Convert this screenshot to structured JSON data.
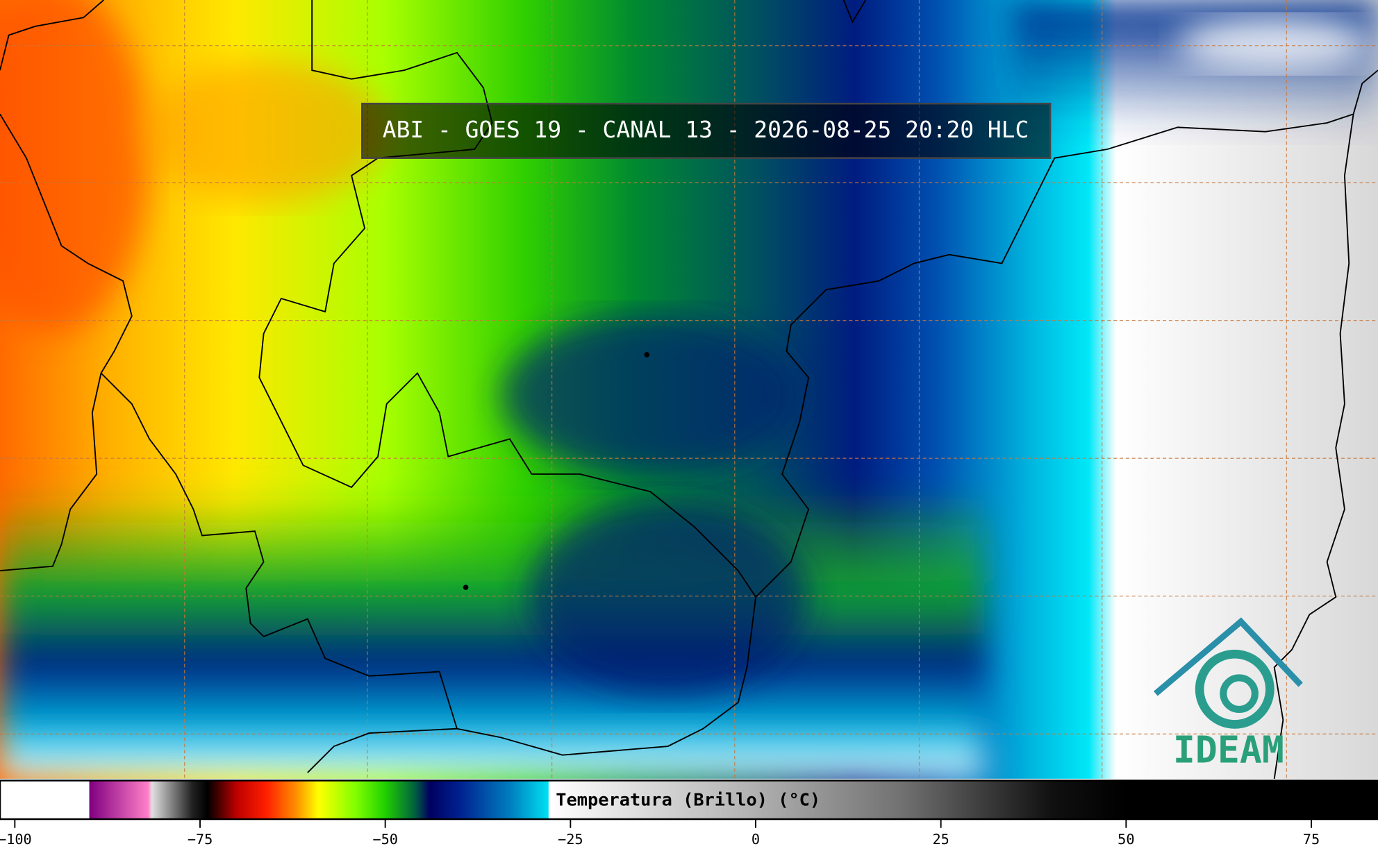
{
  "title": "ABI - GOES 19 - CANAL 13 - 2026-08-25 20:20 HLC",
  "logo": {
    "text": "IDEAM"
  },
  "colorbar": {
    "label": "Temperatura (Brillo) (°C)",
    "lim": [
      -102,
      84
    ],
    "ticks": [
      {
        "value": -100,
        "label": "−100"
      },
      {
        "value": -75,
        "label": "−75"
      },
      {
        "value": -50,
        "label": "−50"
      },
      {
        "value": -25,
        "label": "−25"
      },
      0,
      25,
      50,
      75
    ],
    "stops": [
      {
        "value": -102,
        "color": "#ffffff"
      },
      {
        "value": -90,
        "color": "#ffffff"
      },
      {
        "value": -89.9,
        "color": "#800080"
      },
      {
        "value": -82,
        "color": "#ff80c8"
      },
      {
        "value": -81.5,
        "color": "#e0e0e0"
      },
      {
        "value": -76,
        "color": "#202020"
      },
      {
        "value": -74,
        "color": "#000000"
      },
      {
        "value": -70,
        "color": "#c00000"
      },
      {
        "value": -66,
        "color": "#ff2000"
      },
      {
        "value": -62,
        "color": "#ff9000"
      },
      {
        "value": -59,
        "color": "#ffff00"
      },
      {
        "value": -54,
        "color": "#80ff00"
      },
      {
        "value": -50,
        "color": "#20d000"
      },
      {
        "value": -46,
        "color": "#006040"
      },
      {
        "value": -44,
        "color": "#000060"
      },
      {
        "value": -40,
        "color": "#002090"
      },
      {
        "value": -33,
        "color": "#0080c0"
      },
      {
        "value": -28,
        "color": "#00e0f0"
      },
      {
        "value": -27.9,
        "color": "#ffffff"
      },
      {
        "value": 0,
        "color": "#b0b0b0"
      },
      {
        "value": 20,
        "color": "#707070"
      },
      {
        "value": 40,
        "color": "#101010"
      },
      {
        "value": 50,
        "color": "#000000"
      },
      {
        "value": 84,
        "color": "#000000"
      }
    ]
  }
}
